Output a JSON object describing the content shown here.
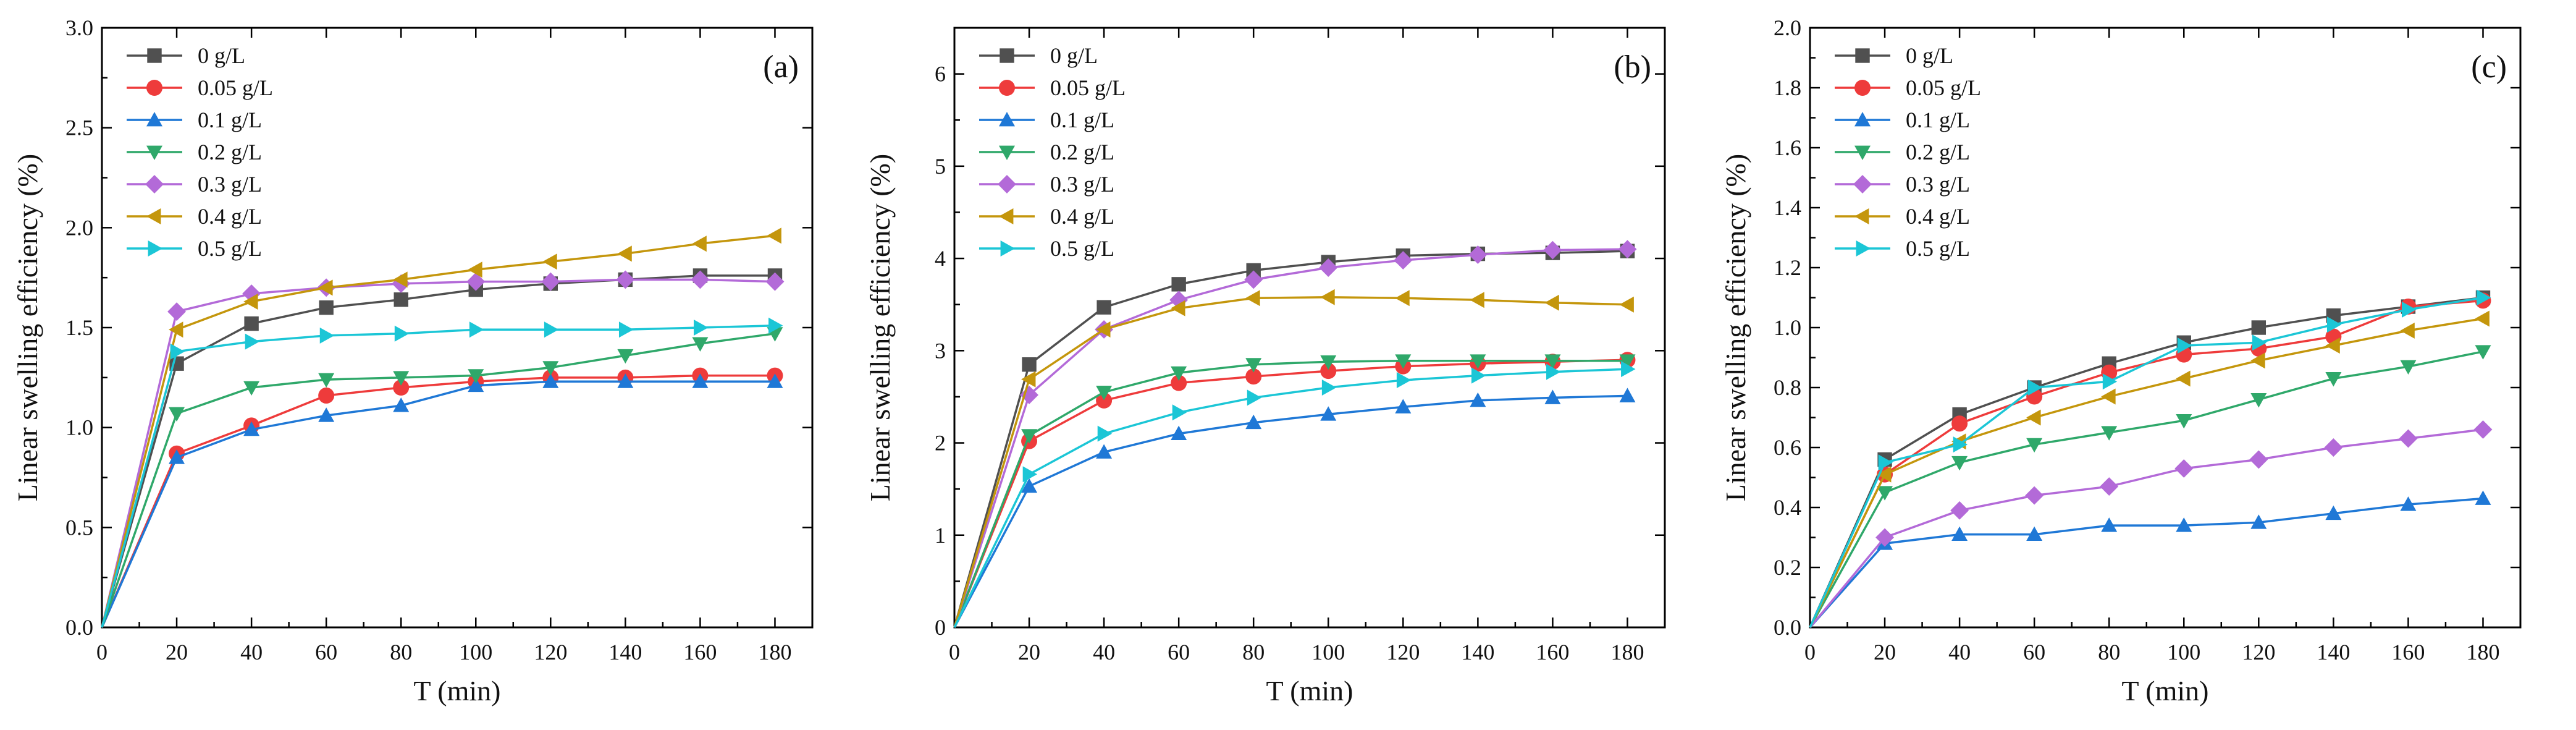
{
  "chart_data": [
    {
      "type": "line",
      "panel_label": "(a)",
      "xlabel": "T (min)",
      "ylabel": "Linear swelling efficiency (%)",
      "xlim": [
        0,
        190
      ],
      "ylim": [
        0,
        3.0
      ],
      "xticks": [
        "0",
        "20",
        "40",
        "60",
        "80",
        "100",
        "120",
        "140",
        "160",
        "180"
      ],
      "yticks": [
        "0.0",
        "0.5",
        "1.0",
        "1.5",
        "2.0",
        "2.5",
        "3.0"
      ],
      "legend_position": "top-left",
      "x": [
        0,
        20,
        40,
        60,
        80,
        100,
        120,
        140,
        160,
        180
      ],
      "series": [
        {
          "name": "0 g/L",
          "color": "#505050",
          "marker": "square",
          "values": [
            0,
            1.32,
            1.52,
            1.6,
            1.64,
            1.69,
            1.72,
            1.74,
            1.76,
            1.76
          ]
        },
        {
          "name": "0.05 g/L",
          "color": "#ee3b3b",
          "marker": "circle",
          "values": [
            0,
            0.87,
            1.01,
            1.16,
            1.2,
            1.23,
            1.25,
            1.25,
            1.26,
            1.26
          ]
        },
        {
          "name": "0.1 g/L",
          "color": "#1f78d6",
          "marker": "triangle-up",
          "values": [
            0,
            0.85,
            0.99,
            1.06,
            1.11,
            1.21,
            1.23,
            1.23,
            1.23,
            1.23
          ]
        },
        {
          "name": "0.2 g/L",
          "color": "#2fa86a",
          "marker": "triangle-down",
          "values": [
            0,
            1.07,
            1.2,
            1.24,
            1.25,
            1.26,
            1.3,
            1.36,
            1.42,
            1.47
          ]
        },
        {
          "name": "0.3 g/L",
          "color": "#b36ad8",
          "marker": "diamond",
          "values": [
            0,
            1.58,
            1.67,
            1.7,
            1.72,
            1.73,
            1.73,
            1.74,
            1.74,
            1.73
          ]
        },
        {
          "name": "0.4 g/L",
          "color": "#c4960c",
          "marker": "triangle-left",
          "values": [
            0,
            1.49,
            1.63,
            1.7,
            1.74,
            1.79,
            1.83,
            1.87,
            1.92,
            1.96
          ]
        },
        {
          "name": "0.5 g/L",
          "color": "#1bc6d6",
          "marker": "triangle-right",
          "values": [
            0,
            1.38,
            1.43,
            1.46,
            1.47,
            1.49,
            1.49,
            1.49,
            1.5,
            1.51
          ]
        }
      ]
    },
    {
      "type": "line",
      "panel_label": "(b)",
      "xlabel": "T (min)",
      "ylabel": "Linear swelling efficiency (%)",
      "xlim": [
        0,
        190
      ],
      "ylim": [
        0,
        6.5
      ],
      "xticks": [
        "0",
        "20",
        "40",
        "60",
        "80",
        "100",
        "120",
        "140",
        "160",
        "180"
      ],
      "yticks": [
        "0",
        "1",
        "2",
        "3",
        "4",
        "5",
        "6"
      ],
      "legend_position": "top-left",
      "x": [
        0,
        20,
        40,
        60,
        80,
        100,
        120,
        140,
        160,
        180
      ],
      "series": [
        {
          "name": "0 g/L",
          "color": "#505050",
          "marker": "square",
          "values": [
            0,
            2.85,
            3.47,
            3.72,
            3.87,
            3.96,
            4.03,
            4.05,
            4.06,
            4.08
          ]
        },
        {
          "name": "0.05 g/L",
          "color": "#ee3b3b",
          "marker": "circle",
          "values": [
            0,
            2.02,
            2.46,
            2.65,
            2.72,
            2.78,
            2.83,
            2.86,
            2.88,
            2.9
          ]
        },
        {
          "name": "0.1 g/L",
          "color": "#1f78d6",
          "marker": "triangle-up",
          "values": [
            0,
            1.53,
            1.9,
            2.1,
            2.22,
            2.31,
            2.39,
            2.46,
            2.49,
            2.51
          ]
        },
        {
          "name": "0.2 g/L",
          "color": "#2fa86a",
          "marker": "triangle-down",
          "values": [
            0,
            2.08,
            2.55,
            2.76,
            2.85,
            2.88,
            2.89,
            2.89,
            2.89,
            2.89
          ]
        },
        {
          "name": "0.3 g/L",
          "color": "#b36ad8",
          "marker": "diamond",
          "values": [
            0,
            2.52,
            3.23,
            3.55,
            3.77,
            3.9,
            3.98,
            4.04,
            4.09,
            4.1
          ]
        },
        {
          "name": "0.4 g/L",
          "color": "#c4960c",
          "marker": "triangle-left",
          "values": [
            0,
            2.69,
            3.23,
            3.46,
            3.57,
            3.58,
            3.57,
            3.55,
            3.52,
            3.5
          ]
        },
        {
          "name": "0.5 g/L",
          "color": "#1bc6d6",
          "marker": "triangle-right",
          "values": [
            0,
            1.66,
            2.1,
            2.33,
            2.49,
            2.6,
            2.68,
            2.73,
            2.77,
            2.8
          ]
        }
      ]
    },
    {
      "type": "line",
      "panel_label": "(c)",
      "xlabel": "T (min)",
      "ylabel": "Linear swelling efficiency (%)",
      "xlim": [
        0,
        190
      ],
      "ylim": [
        0,
        2.0
      ],
      "xticks": [
        "0",
        "20",
        "40",
        "60",
        "80",
        "100",
        "120",
        "140",
        "160",
        "180"
      ],
      "yticks": [
        "0.0",
        "0.2",
        "0.4",
        "0.6",
        "0.8",
        "1.0",
        "1.2",
        "1.4",
        "1.6",
        "1.8",
        "2.0"
      ],
      "legend_position": "top-left",
      "x": [
        0,
        20,
        40,
        60,
        80,
        100,
        120,
        140,
        160,
        180
      ],
      "series": [
        {
          "name": "0 g/L",
          "color": "#505050",
          "marker": "square",
          "values": [
            0,
            0.56,
            0.71,
            0.8,
            0.88,
            0.95,
            1.0,
            1.04,
            1.07,
            1.1
          ]
        },
        {
          "name": "0.05 g/L",
          "color": "#ee3b3b",
          "marker": "circle",
          "values": [
            0,
            0.51,
            0.68,
            0.77,
            0.85,
            0.91,
            0.93,
            0.97,
            1.07,
            1.09
          ]
        },
        {
          "name": "0.1 g/L",
          "color": "#1f78d6",
          "marker": "triangle-up",
          "values": [
            0,
            0.28,
            0.31,
            0.31,
            0.34,
            0.34,
            0.35,
            0.38,
            0.41,
            0.43
          ]
        },
        {
          "name": "0.2 g/L",
          "color": "#2fa86a",
          "marker": "triangle-down",
          "values": [
            0,
            0.45,
            0.55,
            0.61,
            0.65,
            0.69,
            0.76,
            0.83,
            0.87,
            0.92
          ]
        },
        {
          "name": "0.3 g/L",
          "color": "#b36ad8",
          "marker": "diamond",
          "values": [
            0,
            0.3,
            0.39,
            0.44,
            0.47,
            0.53,
            0.56,
            0.6,
            0.63,
            0.66
          ]
        },
        {
          "name": "0.4 g/L",
          "color": "#c4960c",
          "marker": "triangle-left",
          "values": [
            0,
            0.51,
            0.62,
            0.7,
            0.77,
            0.83,
            0.89,
            0.94,
            0.99,
            1.03
          ]
        },
        {
          "name": "0.5 g/L",
          "color": "#1bc6d6",
          "marker": "triangle-right",
          "values": [
            0,
            0.55,
            0.61,
            0.8,
            0.82,
            0.94,
            0.95,
            1.01,
            1.06,
            1.1
          ]
        }
      ]
    }
  ]
}
